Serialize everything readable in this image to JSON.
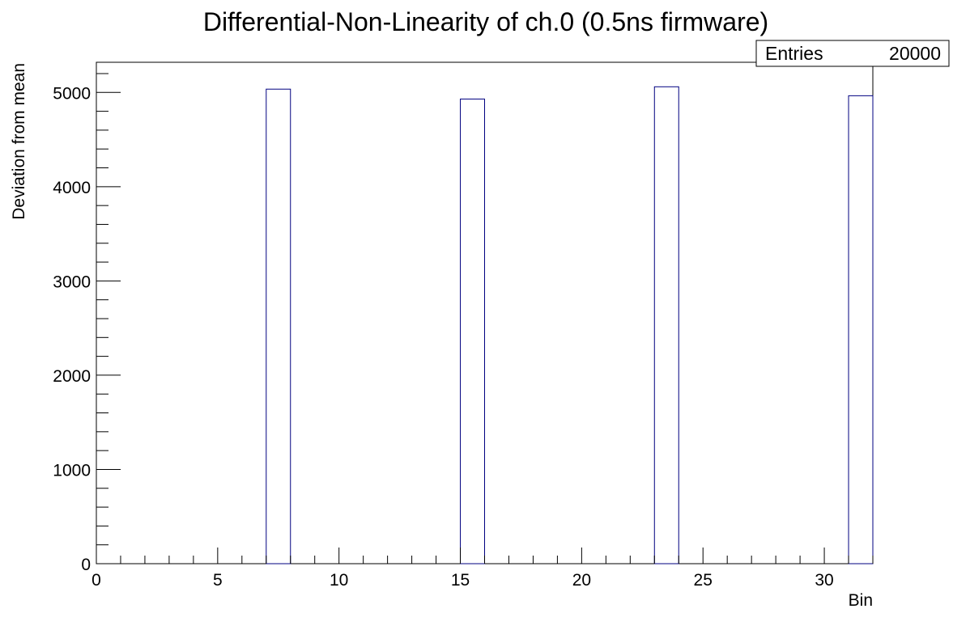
{
  "chart_data": {
    "type": "bar",
    "title": "Differential-Non-Linearity of ch.0 (0.5ns firmware)",
    "xlabel": "Bin",
    "ylabel": "Deviation from mean",
    "xlim": [
      0,
      32
    ],
    "ylim": [
      0,
      5320
    ],
    "x_ticks": [
      0,
      5,
      10,
      15,
      20,
      25,
      30
    ],
    "y_ticks": [
      0,
      1000,
      2000,
      3000,
      4000,
      5000
    ],
    "bins": [
      {
        "x_low": 7,
        "x_high": 8,
        "value": 5035
      },
      {
        "x_low": 15,
        "x_high": 16,
        "value": 4930
      },
      {
        "x_low": 23,
        "x_high": 24,
        "value": 5060
      },
      {
        "x_low": 31,
        "x_high": 32,
        "value": 4965
      }
    ],
    "bar_color": "#000080",
    "grid": false
  },
  "stats_box": {
    "label": "Entries",
    "value": "20000"
  }
}
